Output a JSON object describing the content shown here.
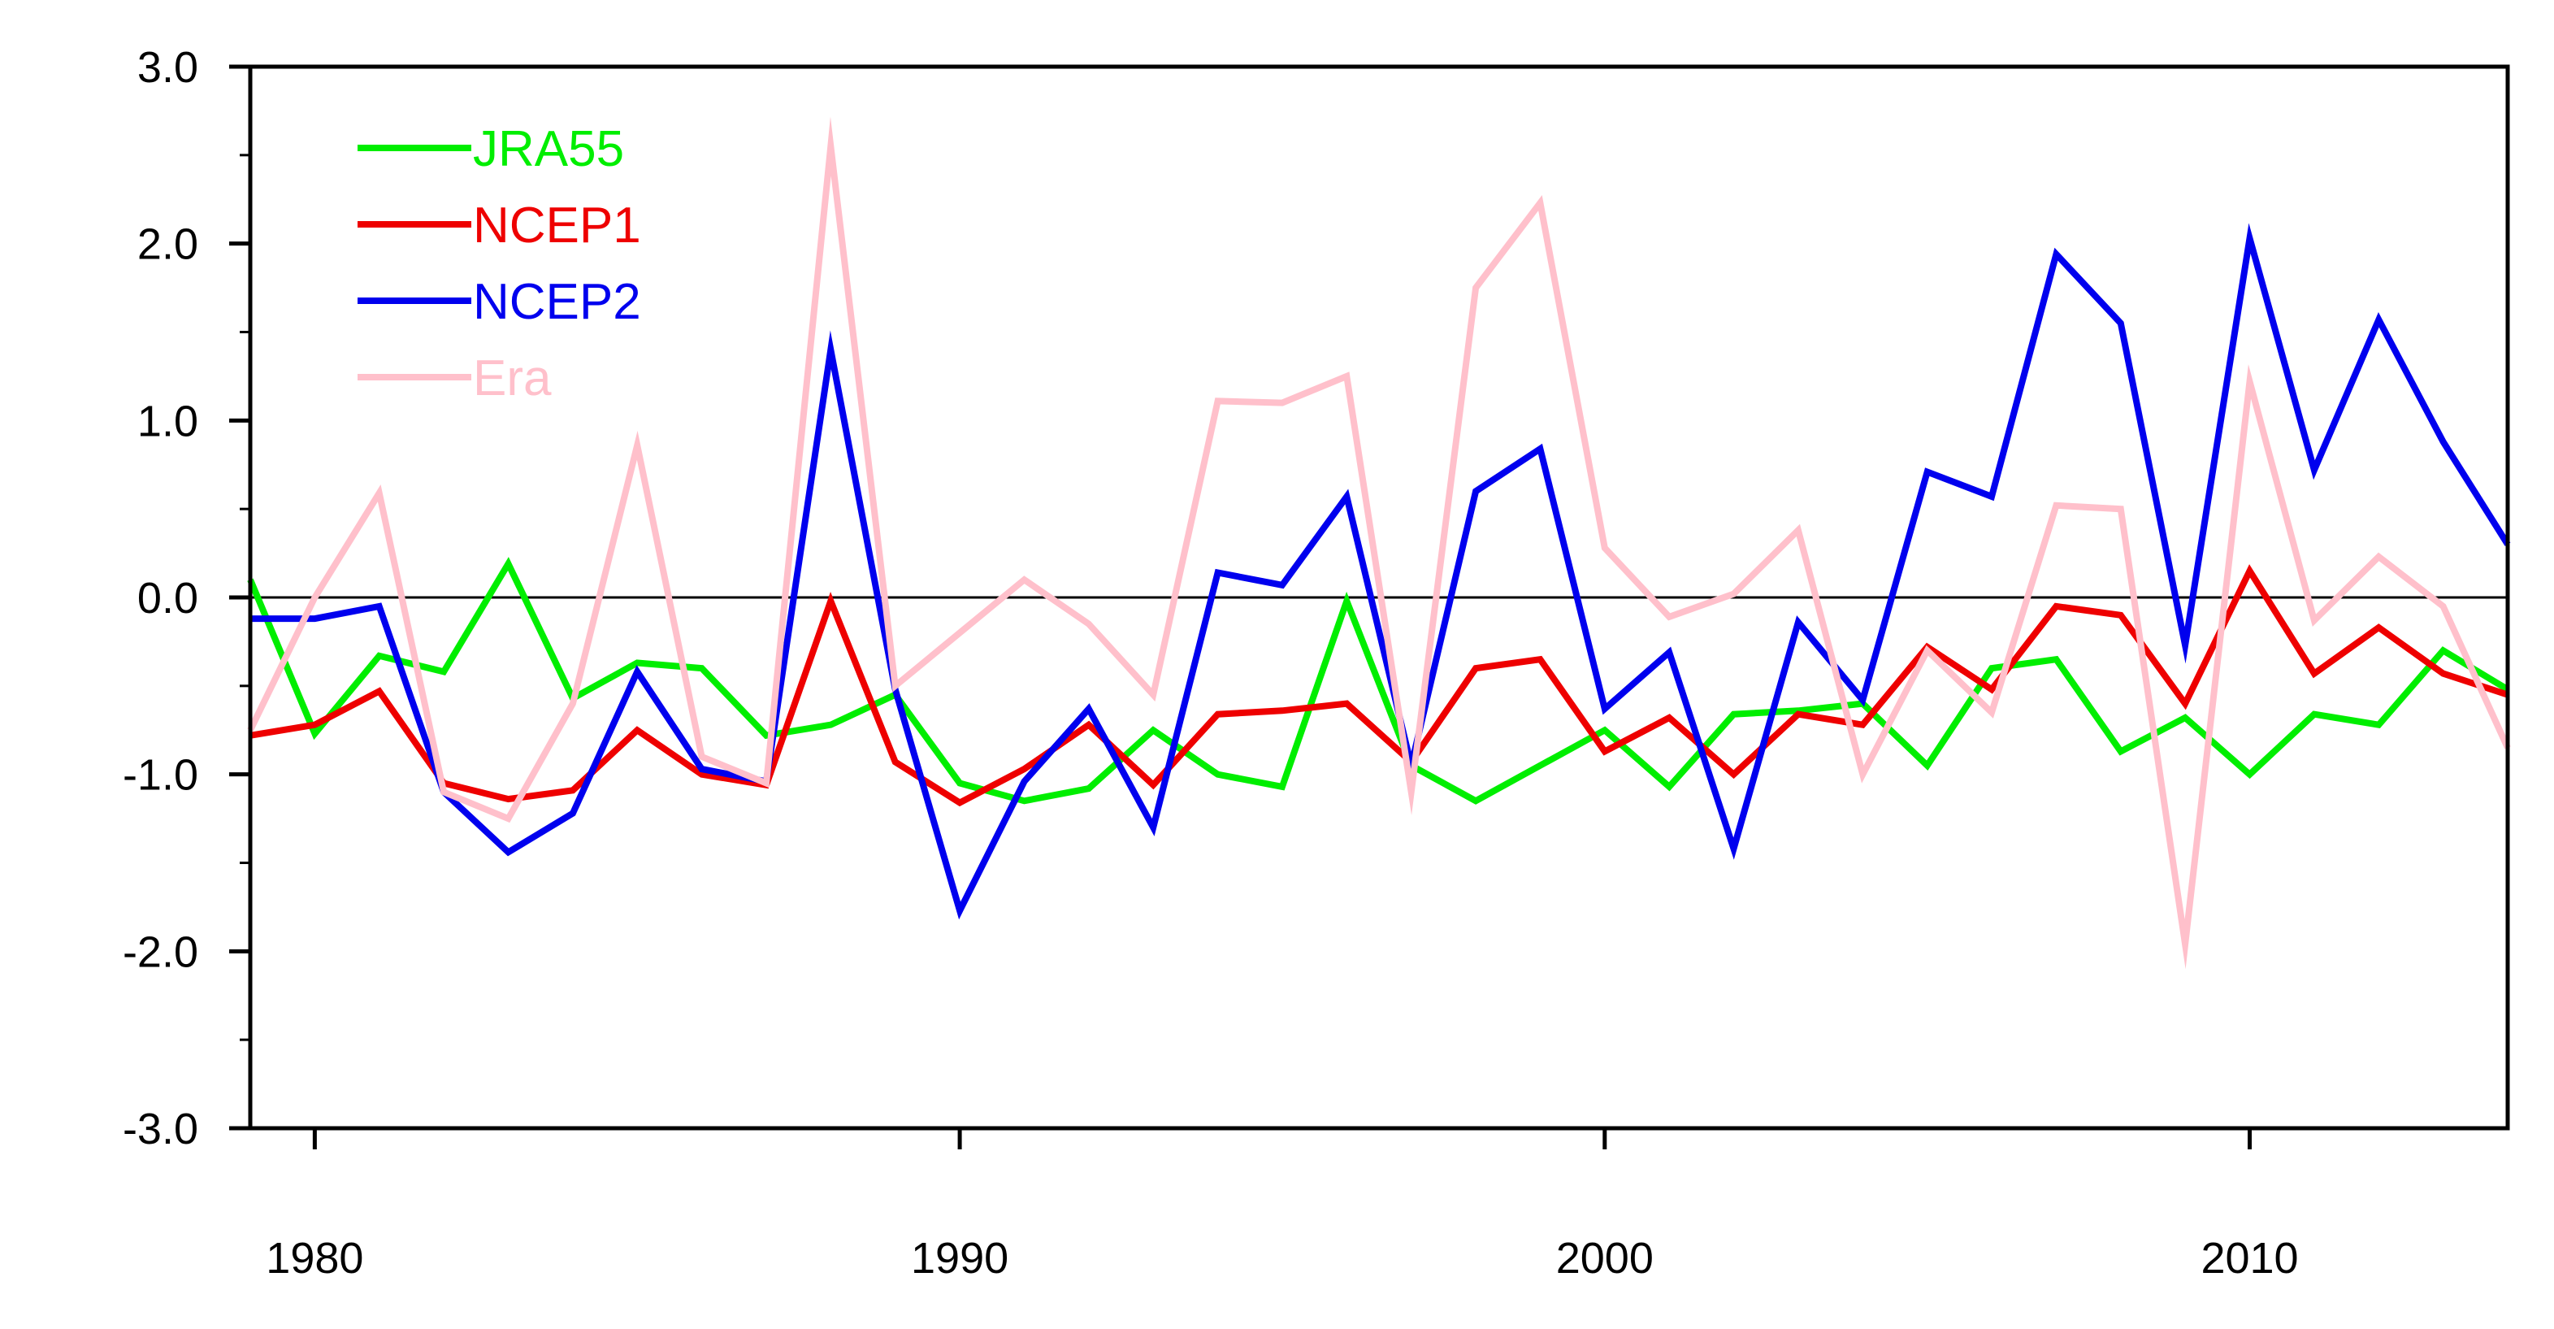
{
  "chart_data": {
    "type": "line",
    "title": "",
    "xlabel": "",
    "ylabel": "",
    "xlim": [
      1979,
      2014
    ],
    "ylim": [
      -3.0,
      3.0
    ],
    "xticks": [
      1980,
      1990,
      2000,
      2010
    ],
    "xtick_labels": [
      "1980",
      "1990",
      "2000",
      "2010"
    ],
    "yticks": [
      3.0,
      2.0,
      1.0,
      0.0,
      -1.0,
      -2.0,
      -3.0
    ],
    "ytick_labels": [
      "3.0",
      "2.0",
      "1.0",
      "0.0",
      "-1.0",
      "-2.0",
      "-3.0"
    ],
    "reference_line": 0.0,
    "grid": false,
    "legend_position": "top-left",
    "x": [
      1979,
      1980,
      1981,
      1982,
      1983,
      1984,
      1985,
      1986,
      1987,
      1988,
      1989,
      1990,
      1991,
      1992,
      1993,
      1994,
      1995,
      1996,
      1997,
      1998,
      1999,
      2000,
      2001,
      2002,
      2003,
      2004,
      2005,
      2006,
      2007,
      2008,
      2009,
      2010,
      2011,
      2012,
      2013,
      2014
    ],
    "series": [
      {
        "name": "JRA55",
        "color": "#00ee00",
        "values": [
          0.1,
          -0.77,
          -0.33,
          -0.42,
          0.19,
          -0.57,
          -0.37,
          -0.4,
          -0.78,
          -0.72,
          -0.55,
          -1.05,
          -1.15,
          -1.08,
          -0.75,
          -1.0,
          -1.07,
          -0.02,
          -0.95,
          -1.15,
          -0.95,
          -0.75,
          -1.07,
          -0.66,
          -0.64,
          -0.6,
          -0.95,
          -0.4,
          -0.35,
          -0.87,
          -0.68,
          -1.0,
          -0.66,
          -0.72,
          -0.3,
          -0.52
        ]
      },
      {
        "name": "NCEP1",
        "color": "#ee0000",
        "values": [
          -0.78,
          -0.72,
          -0.53,
          -1.05,
          -1.14,
          -1.09,
          -0.75,
          -1.0,
          -1.06,
          -0.02,
          -0.93,
          -1.16,
          -0.97,
          -0.72,
          -1.06,
          -0.66,
          -0.64,
          -0.6,
          -0.93,
          -0.4,
          -0.35,
          -0.87,
          -0.68,
          -1.0,
          -0.66,
          -0.72,
          -0.28,
          -0.52,
          -0.05,
          -0.1,
          -0.6,
          0.15,
          -0.43,
          -0.17,
          -0.43,
          -0.55
        ]
      },
      {
        "name": "NCEP2",
        "color": "#0000ee",
        "values": [
          -0.12,
          -0.12,
          -0.05,
          -1.1,
          -1.44,
          -1.22,
          -0.42,
          -0.97,
          -1.04,
          1.4,
          -0.52,
          -1.77,
          -1.04,
          -0.63,
          -1.3,
          0.14,
          0.07,
          0.57,
          -0.95,
          0.6,
          0.84,
          -0.63,
          -0.31,
          -1.42,
          -0.14,
          -0.58,
          0.71,
          0.57,
          1.94,
          1.55,
          -0.27,
          2.03,
          0.72,
          1.57,
          0.88,
          0.3
        ]
      },
      {
        "name": "Era",
        "color": "#ffc0cb",
        "values": [
          -0.75,
          0.0,
          0.59,
          -1.1,
          -1.25,
          -0.6,
          0.86,
          -0.9,
          -1.05,
          2.55,
          -0.5,
          -0.2,
          0.1,
          -0.15,
          -0.55,
          1.11,
          1.1,
          1.25,
          -1.1,
          1.75,
          2.23,
          0.28,
          -0.11,
          0.02,
          0.38,
          -1.0,
          -0.3,
          -0.65,
          0.52,
          0.5,
          -1.96,
          1.22,
          -0.13,
          0.23,
          -0.05,
          -0.85
        ]
      }
    ]
  }
}
